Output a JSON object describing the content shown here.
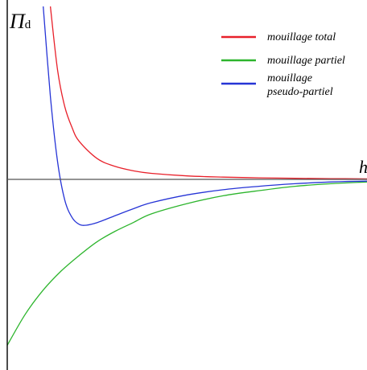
{
  "chart_data": {
    "type": "line",
    "title": "",
    "ylabel": "Πd",
    "ylabel_main": "Π",
    "ylabel_sub": "d",
    "xlabel": "h",
    "grid": false,
    "legend_position": "top-right",
    "xlim": [
      0,
      1
    ],
    "ylim": [
      -1,
      1
    ],
    "series": [
      {
        "name": "mouillage total",
        "color": "#e8202a",
        "x": [
          0.12,
          0.14,
          0.16,
          0.18,
          0.2,
          0.25,
          0.3,
          0.35,
          0.4,
          0.5,
          0.6,
          0.7,
          0.8,
          0.9,
          1.0
        ],
        "y": [
          1.0,
          0.63,
          0.42,
          0.3,
          0.22,
          0.12,
          0.075,
          0.05,
          0.035,
          0.02,
          0.013,
          0.009,
          0.006,
          0.004,
          0.003
        ]
      },
      {
        "name": "mouillage partiel",
        "color": "#2db52d",
        "x": [
          0.0,
          0.05,
          0.1,
          0.15,
          0.2,
          0.25,
          0.3,
          0.35,
          0.4,
          0.5,
          0.6,
          0.7,
          0.8,
          0.9,
          1.0
        ],
        "y": [
          -0.96,
          -0.78,
          -0.64,
          -0.53,
          -0.44,
          -0.36,
          -0.3,
          -0.25,
          -0.2,
          -0.14,
          -0.095,
          -0.065,
          -0.04,
          -0.025,
          -0.015
        ]
      },
      {
        "name": "mouillage\npseudo-partiel",
        "name_lines": [
          "mouillage",
          "pseudo-partiel"
        ],
        "color": "#2634d6",
        "x": [
          0.1,
          0.12,
          0.14,
          0.16,
          0.18,
          0.2,
          0.22,
          0.25,
          0.3,
          0.35,
          0.4,
          0.5,
          0.6,
          0.7,
          0.8,
          0.9,
          1.0
        ],
        "y": [
          1.0,
          0.48,
          0.1,
          -0.12,
          -0.22,
          -0.26,
          -0.265,
          -0.25,
          -0.21,
          -0.17,
          -0.135,
          -0.09,
          -0.06,
          -0.04,
          -0.025,
          -0.015,
          -0.01
        ]
      }
    ]
  }
}
